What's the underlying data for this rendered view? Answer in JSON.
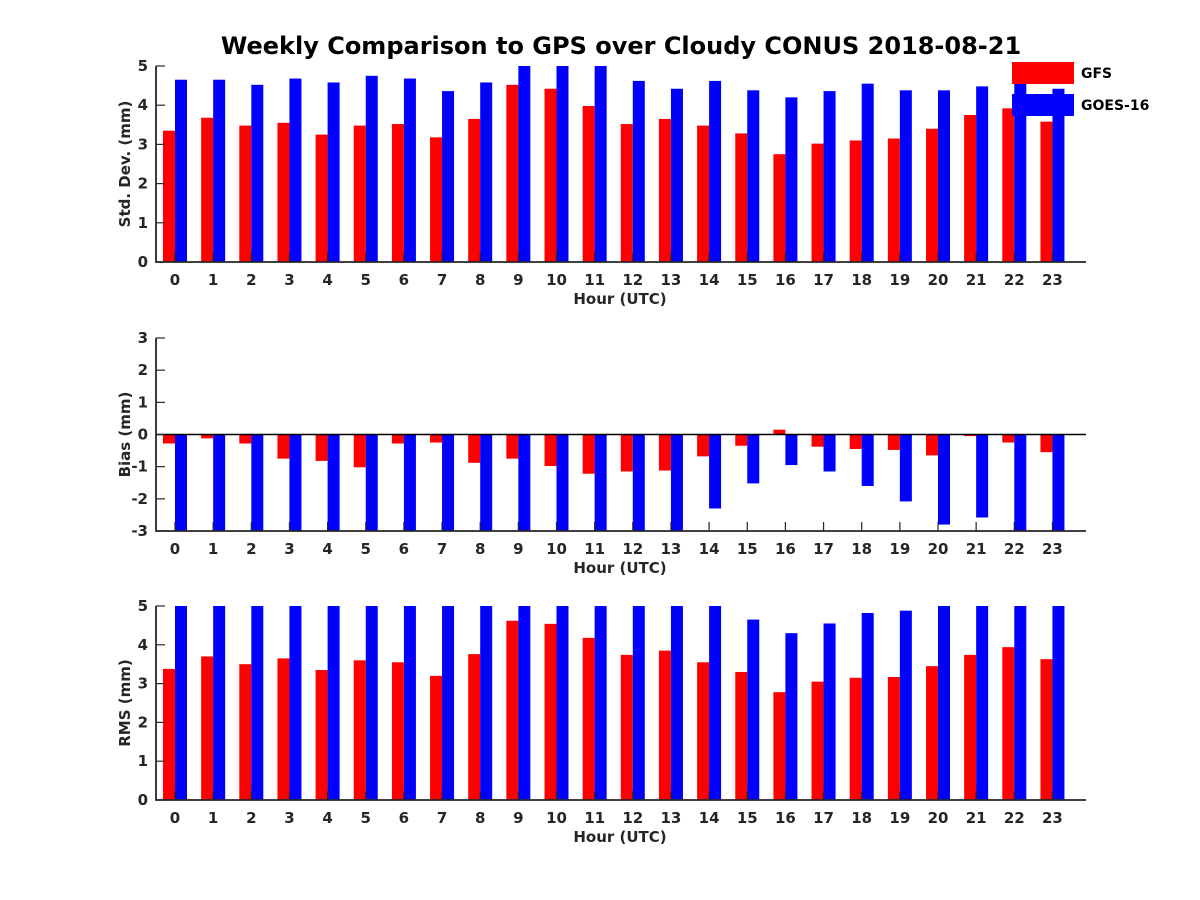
{
  "figure": {
    "title": "Weekly Comparison to GPS over Cloudy CONUS 2018-08-21"
  },
  "legend": {
    "placement": "top-right, outside upper axes",
    "entries": [
      {
        "name": "GFS",
        "color": "#ff0000"
      },
      {
        "name": "GOES-16",
        "color": "#0000ff"
      }
    ]
  },
  "chart_data": [
    {
      "type": "bar",
      "xlabel": "Hour (UTC)",
      "ylabel": "Std. Dev. (mm)",
      "ylim": [
        0,
        5
      ],
      "yticks": [
        0,
        1,
        2,
        3,
        4,
        5
      ],
      "categories": [
        "0",
        "1",
        "2",
        "3",
        "4",
        "5",
        "6",
        "7",
        "8",
        "9",
        "10",
        "11",
        "12",
        "13",
        "14",
        "15",
        "16",
        "17",
        "18",
        "19",
        "20",
        "21",
        "22",
        "23"
      ],
      "series": [
        {
          "name": "GFS",
          "color": "#ff0000",
          "values": [
            3.35,
            3.68,
            3.48,
            3.55,
            3.25,
            3.48,
            3.52,
            3.18,
            3.65,
            4.52,
            4.42,
            3.98,
            3.52,
            3.65,
            3.48,
            3.28,
            2.75,
            3.02,
            3.1,
            3.15,
            3.4,
            3.75,
            3.92,
            3.58
          ]
        },
        {
          "name": "GOES-16",
          "color": "#0000ff",
          "values": [
            4.65,
            4.65,
            4.52,
            4.68,
            4.58,
            4.75,
            4.68,
            4.36,
            4.58,
            5.0,
            5.0,
            5.0,
            4.62,
            4.42,
            4.62,
            4.38,
            4.2,
            4.36,
            4.55,
            4.38,
            4.38,
            4.48,
            4.65,
            4.42
          ]
        }
      ]
    },
    {
      "type": "bar",
      "xlabel": "Hour (UTC)",
      "ylabel": "Bias (mm)",
      "ylim": [
        -3,
        3
      ],
      "yticks": [
        -3,
        -2,
        -1,
        0,
        1,
        2,
        3
      ],
      "zero_line": true,
      "categories": [
        "0",
        "1",
        "2",
        "3",
        "4",
        "5",
        "6",
        "7",
        "8",
        "9",
        "10",
        "11",
        "12",
        "13",
        "14",
        "15",
        "16",
        "17",
        "18",
        "19",
        "20",
        "21",
        "22",
        "23"
      ],
      "series": [
        {
          "name": "GFS",
          "color": "#ff0000",
          "values": [
            -0.28,
            -0.12,
            -0.28,
            -0.75,
            -0.82,
            -1.02,
            -0.28,
            -0.25,
            -0.88,
            -0.75,
            -0.98,
            -1.22,
            -1.15,
            -1.12,
            -0.68,
            -0.35,
            0.15,
            -0.38,
            -0.45,
            -0.48,
            -0.65,
            -0.05,
            -0.25,
            -0.55
          ]
        },
        {
          "name": "GOES-16",
          "color": "#0000ff",
          "values": [
            -3.0,
            -3.0,
            -3.0,
            -3.0,
            -3.0,
            -3.0,
            -3.0,
            -3.0,
            -3.0,
            -3.0,
            -3.0,
            -3.0,
            -3.0,
            -3.0,
            -2.3,
            -1.52,
            -0.95,
            -1.15,
            -1.6,
            -2.08,
            -2.8,
            -2.58,
            -3.0,
            -3.0
          ]
        }
      ]
    },
    {
      "type": "bar",
      "xlabel": "Hour (UTC)",
      "ylabel": "RMS (mm)",
      "ylim": [
        0,
        5
      ],
      "yticks": [
        0,
        1,
        2,
        3,
        4,
        5
      ],
      "categories": [
        "0",
        "1",
        "2",
        "3",
        "4",
        "5",
        "6",
        "7",
        "8",
        "9",
        "10",
        "11",
        "12",
        "13",
        "14",
        "15",
        "16",
        "17",
        "18",
        "19",
        "20",
        "21",
        "22",
        "23"
      ],
      "series": [
        {
          "name": "GFS",
          "color": "#ff0000",
          "values": [
            3.38,
            3.7,
            3.5,
            3.65,
            3.35,
            3.6,
            3.55,
            3.2,
            3.76,
            4.62,
            4.54,
            4.18,
            3.74,
            3.85,
            3.55,
            3.3,
            2.78,
            3.05,
            3.15,
            3.17,
            3.45,
            3.74,
            3.94,
            3.63
          ]
        },
        {
          "name": "GOES-16",
          "color": "#0000ff",
          "values": [
            5.0,
            5.0,
            5.0,
            5.0,
            5.0,
            5.0,
            5.0,
            5.0,
            5.0,
            5.0,
            5.0,
            5.0,
            5.0,
            5.0,
            5.0,
            4.65,
            4.3,
            4.55,
            4.82,
            4.88,
            5.0,
            5.0,
            5.0,
            5.0
          ]
        }
      ]
    }
  ]
}
